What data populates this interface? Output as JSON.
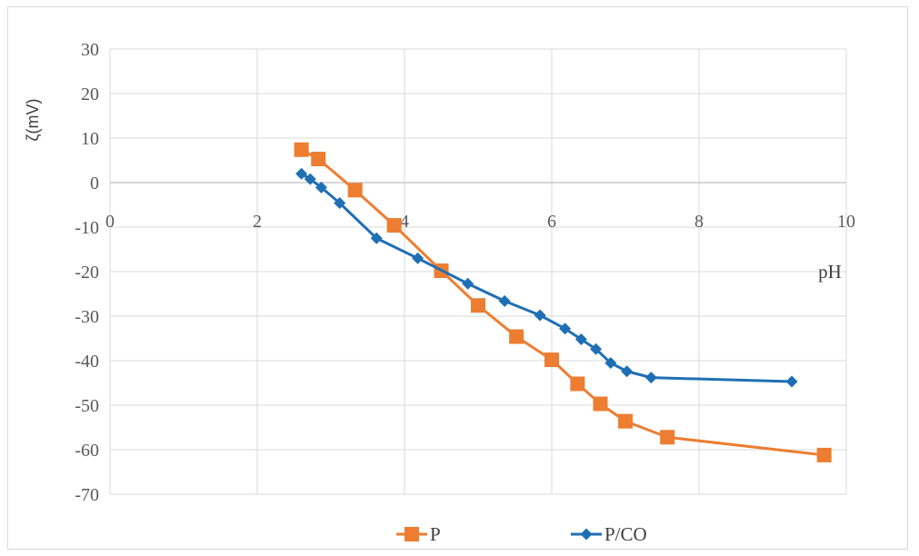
{
  "chart_data": {
    "type": "scatter",
    "xlabel": "pH",
    "ylabel": "ζ(mV)",
    "xlim": [
      0,
      10
    ],
    "ylim": [
      -70,
      30
    ],
    "x_ticks": [
      0,
      2,
      4,
      6,
      8,
      10
    ],
    "y_ticks": [
      30,
      20,
      10,
      0,
      -10,
      -20,
      -30,
      -40,
      -50,
      -60,
      -70
    ],
    "grid": "on",
    "legend": "bottom",
    "series": [
      {
        "name": "P",
        "color": "#ed7d31",
        "marker": "square",
        "x": [
          2.6,
          2.83,
          3.33,
          3.86,
          4.5,
          5.0,
          5.52,
          6.0,
          6.35,
          6.66,
          7.0,
          7.57,
          9.7
        ],
        "y": [
          7.4,
          5.3,
          -1.7,
          -9.6,
          -19.8,
          -27.6,
          -34.6,
          -39.8,
          -45.2,
          -49.7,
          -53.6,
          -57.2,
          -61.2
        ]
      },
      {
        "name": "P/CO",
        "color": "#1f6fb5",
        "marker": "diamond",
        "x": [
          2.6,
          2.72,
          2.87,
          3.12,
          3.62,
          4.18,
          4.86,
          5.36,
          5.84,
          6.18,
          6.4,
          6.6,
          6.8,
          7.02,
          7.35,
          9.26
        ],
        "y": [
          2.0,
          0.8,
          -1.1,
          -4.6,
          -12.5,
          -17.0,
          -22.7,
          -26.6,
          -29.8,
          -32.8,
          -35.2,
          -37.4,
          -40.5,
          -42.4,
          -43.8,
          -44.7
        ]
      }
    ]
  }
}
